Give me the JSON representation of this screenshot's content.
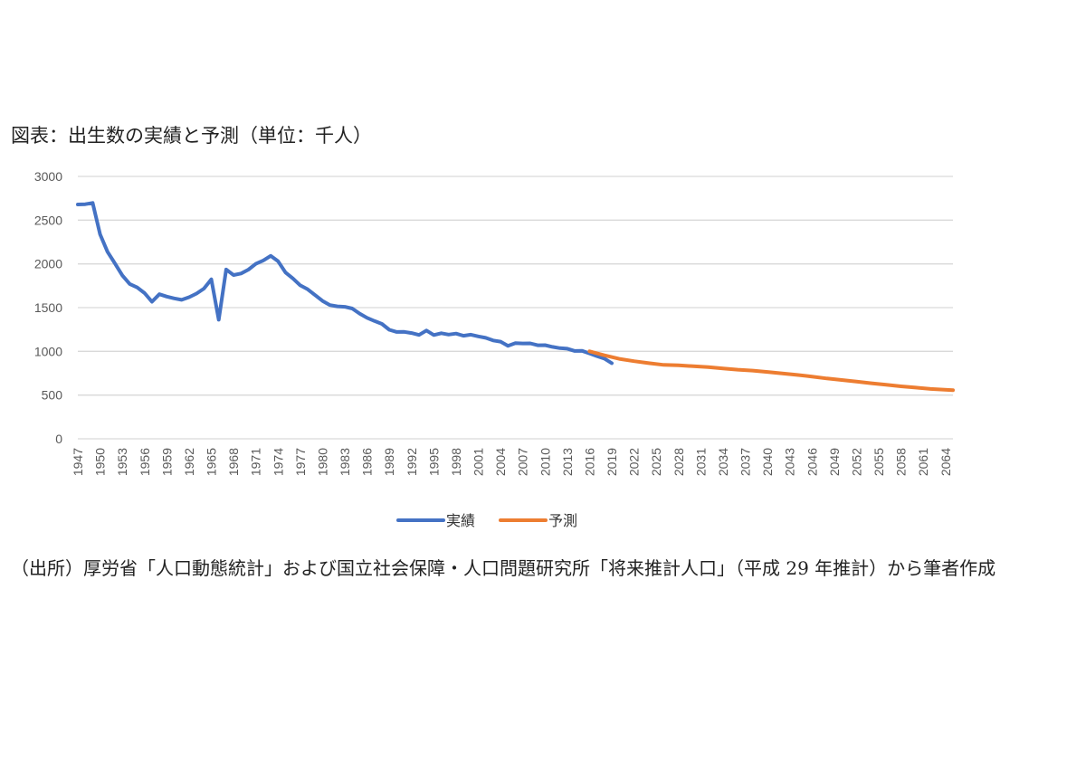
{
  "chart_data": {
    "type": "line",
    "title": "図表：出生数の実績と予測（単位：千人）",
    "ylim": [
      0,
      3000
    ],
    "yticks": [
      0,
      500,
      1000,
      1500,
      2000,
      2500,
      3000
    ],
    "xlim": [
      1947,
      2065
    ],
    "xtick_labels": [
      "1947",
      "1950",
      "1953",
      "1956",
      "1959",
      "1962",
      "1965",
      "1968",
      "1971",
      "1974",
      "1977",
      "1980",
      "1983",
      "1986",
      "1989",
      "1992",
      "1995",
      "1998",
      "2001",
      "2004",
      "2007",
      "2010",
      "2013",
      "2016",
      "2019",
      "2022",
      "2025",
      "2028",
      "2031",
      "2034",
      "2037",
      "2040",
      "2043",
      "2046",
      "2049",
      "2052",
      "2055",
      "2058",
      "2061",
      "2064"
    ],
    "grid": true,
    "legend_position": "bottom",
    "series": [
      {
        "name": "実績",
        "color": "#4472C4",
        "x": [
          1947,
          1948,
          1949,
          1950,
          1951,
          1952,
          1953,
          1954,
          1955,
          1956,
          1957,
          1958,
          1959,
          1960,
          1961,
          1962,
          1963,
          1964,
          1965,
          1966,
          1967,
          1968,
          1969,
          1970,
          1971,
          1972,
          1973,
          1974,
          1975,
          1976,
          1977,
          1978,
          1979,
          1980,
          1981,
          1982,
          1983,
          1984,
          1985,
          1986,
          1987,
          1988,
          1989,
          1990,
          1991,
          1992,
          1993,
          1994,
          1995,
          1996,
          1997,
          1998,
          1999,
          2000,
          2001,
          2002,
          2003,
          2004,
          2005,
          2006,
          2007,
          2008,
          2009,
          2010,
          2011,
          2012,
          2013,
          2014,
          2015,
          2016,
          2017,
          2018,
          2019
        ],
        "values": [
          2679,
          2682,
          2697,
          2338,
          2138,
          2005,
          1868,
          1770,
          1731,
          1665,
          1567,
          1653,
          1626,
          1606,
          1589,
          1619,
          1660,
          1717,
          1824,
          1361,
          1936,
          1872,
          1890,
          1934,
          2001,
          2039,
          2092,
          2030,
          1901,
          1833,
          1755,
          1709,
          1643,
          1577,
          1529,
          1515,
          1509,
          1490,
          1432,
          1383,
          1347,
          1314,
          1247,
          1222,
          1223,
          1209,
          1188,
          1238,
          1187,
          1207,
          1192,
          1203,
          1178,
          1191,
          1171,
          1154,
          1124,
          1111,
          1063,
          1093,
          1090,
          1091,
          1070,
          1071,
          1051,
          1037,
          1030,
          1004,
          1006,
          977,
          946,
          918,
          865
        ]
      },
      {
        "name": "予測",
        "color": "#ED7D31",
        "x": [
          2016,
          2018,
          2020,
          2022,
          2024,
          2026,
          2028,
          2030,
          2032,
          2034,
          2036,
          2038,
          2040,
          2042,
          2044,
          2046,
          2048,
          2050,
          2052,
          2054,
          2056,
          2058,
          2060,
          2062,
          2065
        ],
        "values": [
          1000,
          955,
          915,
          888,
          865,
          845,
          840,
          830,
          820,
          805,
          790,
          780,
          765,
          748,
          730,
          712,
          690,
          672,
          655,
          635,
          618,
          600,
          585,
          570,
          555
        ]
      }
    ]
  },
  "source_note": "（出所）厚労省「人口動態統計」および国立社会保障・人口問題研究所「将来推計人口」（平成 29 年推計）から筆者作成"
}
